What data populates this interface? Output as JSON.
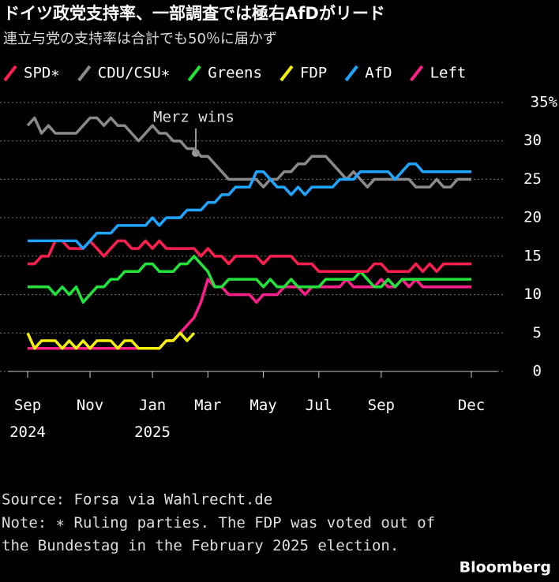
{
  "chart_data": {
    "type": "line",
    "title": "ドイツ政党支持率、一部調査では極右AfDがリード",
    "subtitle": "連立与党の支持率は合計でも50％に届かず",
    "annotation": "Merz wins",
    "source": "Source: Forsa via Wahlrecht.de",
    "note": "Note: ∗ Ruling parties. The FDP was voted out of the Bundestag in the February 2025 election.",
    "brand": "Bloomberg",
    "categories": [
      "Sep 2024",
      null,
      null,
      null,
      null,
      null,
      null,
      null,
      null,
      "Nov",
      null,
      null,
      null,
      null,
      null,
      null,
      null,
      null,
      "Jan 2025",
      null,
      null,
      null,
      null,
      null,
      null,
      null,
      "Mar",
      null,
      null,
      null,
      null,
      null,
      null,
      null,
      "May",
      null,
      null,
      null,
      null,
      null,
      null,
      null,
      "Jul",
      null,
      null,
      null,
      null,
      null,
      null,
      null,
      null,
      "Sep",
      null,
      null,
      null,
      null,
      null,
      null,
      null,
      null,
      null,
      null,
      null,
      null,
      "Dec"
    ],
    "series": [
      {
        "name": "SPD∗",
        "color": "#ff1f4f",
        "values": [
          14,
          14,
          15,
          15,
          17,
          17,
          16,
          16,
          16,
          17,
          16,
          15,
          16,
          17,
          17,
          16,
          16,
          17,
          16,
          17,
          16,
          16,
          16,
          16,
          16,
          15,
          16,
          15,
          15,
          14,
          15,
          15,
          15,
          15,
          14,
          15,
          15,
          15,
          15,
          14,
          14,
          14,
          13,
          13,
          13,
          13,
          13,
          13,
          13,
          13,
          14,
          14,
          13,
          13,
          13,
          13,
          14,
          13,
          14,
          13,
          14,
          14,
          14,
          14,
          14
        ]
      },
      {
        "name": "CDU/CSU∗",
        "color": "#8a8a8a",
        "values": [
          32,
          33,
          31,
          32,
          31,
          31,
          31,
          31,
          32,
          33,
          33,
          32,
          33,
          32,
          32,
          31,
          30,
          31,
          32,
          31,
          31,
          30,
          30,
          29,
          29,
          28,
          28,
          27,
          26,
          25,
          25,
          25,
          25,
          25,
          24,
          25,
          25,
          26,
          26,
          27,
          27,
          28,
          28,
          28,
          27,
          26,
          25,
          26,
          25,
          24,
          25,
          25,
          25,
          25,
          25,
          25,
          24,
          24,
          24,
          25,
          24,
          24,
          25,
          25,
          25
        ]
      },
      {
        "name": "Greens",
        "color": "#22e33a",
        "values": [
          11,
          11,
          11,
          11,
          10,
          11,
          10,
          11,
          9,
          10,
          11,
          11,
          12,
          12,
          13,
          13,
          13,
          14,
          14,
          13,
          13,
          13,
          14,
          14,
          15,
          14,
          13,
          11,
          11,
          12,
          12,
          12,
          12,
          12,
          11,
          12,
          11,
          11,
          12,
          11,
          11,
          11,
          11,
          12,
          12,
          12,
          12,
          12,
          13,
          12,
          11,
          11,
          12,
          11,
          12,
          12,
          12,
          12,
          12,
          12,
          12,
          12,
          12,
          12,
          12
        ]
      },
      {
        "name": "FDP",
        "color": "#f5f00a",
        "values": [
          5,
          3,
          4,
          4,
          4,
          3,
          4,
          3,
          4,
          3,
          4,
          4,
          4,
          3,
          4,
          4,
          3,
          3,
          3,
          3,
          4,
          4,
          5,
          4,
          5,
          null,
          null,
          null,
          null,
          null,
          null,
          null,
          null,
          null,
          null,
          null,
          null,
          null,
          null,
          null,
          null,
          null,
          null,
          null,
          null,
          null,
          null,
          null,
          null,
          null,
          null,
          null,
          null,
          null,
          null,
          null,
          null,
          null,
          null,
          null,
          null,
          null,
          null,
          null,
          null
        ]
      },
      {
        "name": "AfD",
        "color": "#1ea5ff",
        "values": [
          17,
          17,
          17,
          17,
          17,
          17,
          17,
          17,
          16,
          17,
          18,
          18,
          18,
          19,
          19,
          19,
          19,
          19,
          20,
          19,
          20,
          20,
          20,
          21,
          21,
          21,
          22,
          22,
          23,
          23,
          24,
          24,
          24,
          26,
          26,
          25,
          24,
          24,
          23,
          24,
          23,
          24,
          24,
          24,
          24,
          25,
          25,
          25,
          26,
          26,
          26,
          26,
          26,
          25,
          26,
          27,
          27,
          26,
          26,
          26,
          26,
          26,
          26,
          26,
          26
        ]
      },
      {
        "name": "Left",
        "color": "#ff1e8c",
        "values": [
          3,
          3,
          3,
          3,
          3,
          3,
          3,
          3,
          3,
          3,
          3,
          3,
          3,
          3,
          3,
          3,
          3,
          3,
          3,
          3,
          4,
          4,
          5,
          6,
          7,
          9,
          12,
          11,
          11,
          10,
          10,
          10,
          10,
          9,
          10,
          10,
          10,
          11,
          11,
          11,
          10,
          11,
          11,
          11,
          11,
          11,
          12,
          11,
          11,
          11,
          11,
          12,
          11,
          11,
          12,
          11,
          12,
          11,
          11,
          11,
          11,
          11,
          11,
          11,
          11
        ]
      }
    ],
    "ylim": [
      0,
      35
    ],
    "yticks": [
      0,
      5,
      10,
      15,
      20,
      25,
      30,
      {
        "value": 35,
        "label": "35%"
      }
    ],
    "grid": true
  }
}
